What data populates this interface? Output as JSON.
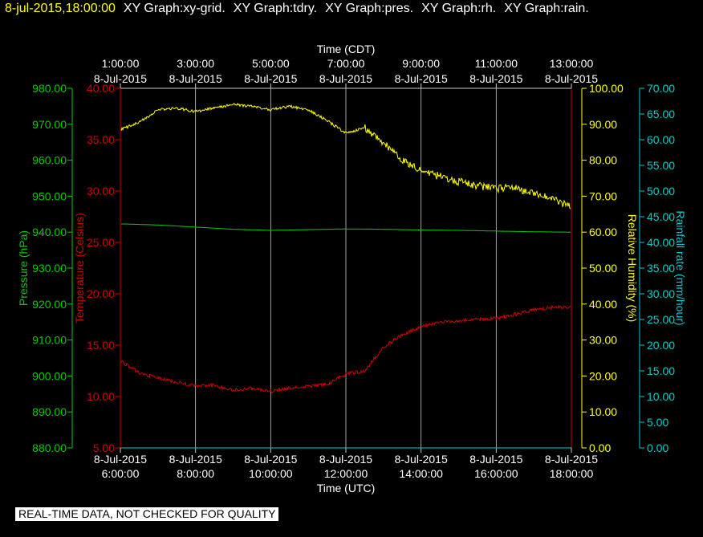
{
  "header": {
    "timestamp": "8-jul-2015,18:00:00",
    "graphs": [
      "XY Graph:xy-grid.",
      "XY Graph:tdry.",
      "XY Graph:pres.",
      "XY Graph:rh.",
      "XY Graph:rain."
    ]
  },
  "footer": {
    "quality_note": "REAL-TIME DATA, NOT CHECKED FOR QUALITY"
  },
  "colors": {
    "pressure": "#00cc00",
    "temperature": "#cc0000",
    "rh": "#ffff00",
    "rain": "#00cccc",
    "grid": "#c8c8c8",
    "text": "#ffffff"
  },
  "chart_data": {
    "type": "line",
    "top_axis": {
      "label": "Time (CDT)",
      "ticks": [
        {
          "time": "1:00:00",
          "date": "8-Jul-2015"
        },
        {
          "time": "3:00:00",
          "date": "8-Jul-2015"
        },
        {
          "time": "5:00:00",
          "date": "8-Jul-2015"
        },
        {
          "time": "7:00:00",
          "date": "8-Jul-2015"
        },
        {
          "time": "9:00:00",
          "date": "8-Jul-2015"
        },
        {
          "time": "11:00:00",
          "date": "8-Jul-2015"
        },
        {
          "time": "13:00:00",
          "date": "8-Jul-2015"
        }
      ]
    },
    "bottom_axis": {
      "label": "Time (UTC)",
      "ticks": [
        {
          "time": "6:00:00",
          "date": "8-Jul-2015"
        },
        {
          "time": "8:00:00",
          "date": "8-Jul-2015"
        },
        {
          "time": "10:00:00",
          "date": "8-Jul-2015"
        },
        {
          "time": "12:00:00",
          "date": "8-Jul-2015"
        },
        {
          "time": "14:00:00",
          "date": "8-Jul-2015"
        },
        {
          "time": "16:00:00",
          "date": "8-Jul-2015"
        },
        {
          "time": "18:00:00",
          "date": "8-Jul-2015"
        }
      ],
      "xlim_hours_utc": [
        6,
        18
      ]
    },
    "axes": {
      "pressure": {
        "label": "Pressure (hPa)",
        "ylim": [
          880,
          980
        ],
        "ticks": [
          "880.00",
          "890.00",
          "900.00",
          "910.00",
          "920.00",
          "930.00",
          "940.00",
          "950.00",
          "960.00",
          "970.00",
          "980.00"
        ]
      },
      "temperature": {
        "label": "Temperature (Celsius)",
        "ylim": [
          5,
          40
        ],
        "ticks": [
          "5.00",
          "10.00",
          "15.00",
          "20.00",
          "25.00",
          "30.00",
          "35.00",
          "40.00"
        ]
      },
      "rh": {
        "label": "Relative Humidity (%)",
        "ylim": [
          0,
          100
        ],
        "ticks": [
          "0.00",
          "10.00",
          "20.00",
          "30.00",
          "40.00",
          "50.00",
          "60.00",
          "70.00",
          "80.00",
          "90.00",
          "100.00"
        ]
      },
      "rain": {
        "label": "Rainfall rate (mm/hour)",
        "ylim": [
          0,
          70
        ],
        "ticks": [
          "0.00",
          "5.00",
          "10.00",
          "15.00",
          "20.00",
          "25.00",
          "30.00",
          "35.00",
          "40.00",
          "45.00",
          "50.00",
          "55.00",
          "60.00",
          "65.00",
          "70.00"
        ]
      }
    },
    "series": [
      {
        "name": "Pressure (hPa)",
        "axis": "pressure",
        "x": [
          6.0,
          7.0,
          8.0,
          9.0,
          10.0,
          11.0,
          12.0,
          13.0,
          14.0,
          15.0,
          16.0,
          17.0,
          18.0
        ],
        "values": [
          942.3,
          942.0,
          941.4,
          940.8,
          940.5,
          940.7,
          940.9,
          940.8,
          940.6,
          940.5,
          940.3,
          940.1,
          940.0
        ]
      },
      {
        "name": "Temperature (Celsius)",
        "axis": "temperature",
        "x": [
          6.0,
          6.5,
          7.0,
          7.5,
          8.0,
          8.5,
          9.0,
          9.5,
          10.0,
          10.5,
          11.0,
          11.5,
          12.0,
          12.5,
          13.0,
          13.5,
          14.0,
          14.5,
          15.0,
          15.5,
          16.0,
          16.5,
          17.0,
          17.5,
          18.0
        ],
        "values": [
          13.5,
          12.3,
          11.8,
          11.4,
          11.0,
          11.1,
          10.6,
          10.8,
          10.5,
          10.8,
          11.0,
          11.2,
          12.2,
          12.5,
          14.8,
          16.0,
          16.8,
          17.2,
          17.4,
          17.5,
          17.6,
          18.0,
          18.4,
          18.7,
          18.7
        ]
      },
      {
        "name": "Relative Humidity (%)",
        "axis": "rh",
        "x": [
          6.0,
          6.5,
          7.0,
          7.5,
          8.0,
          8.5,
          9.0,
          9.5,
          10.0,
          10.5,
          11.0,
          11.5,
          12.0,
          12.5,
          13.0,
          13.5,
          14.0,
          14.5,
          15.0,
          15.5,
          16.0,
          16.5,
          17.0,
          17.5,
          18.0
        ],
        "values": [
          88.5,
          90.5,
          94.0,
          94.5,
          93.5,
          94.5,
          95.5,
          95.0,
          94.0,
          95.0,
          94.0,
          91.0,
          87.5,
          89.0,
          85.0,
          80.0,
          77.0,
          75.5,
          74.0,
          73.0,
          72.0,
          72.5,
          70.5,
          69.5,
          67.0
        ]
      },
      {
        "name": "Rainfall rate (mm/hour)",
        "axis": "rain",
        "x": [
          6.0,
          18.0
        ],
        "values": [
          0.0,
          0.0
        ]
      }
    ],
    "grid": true
  }
}
